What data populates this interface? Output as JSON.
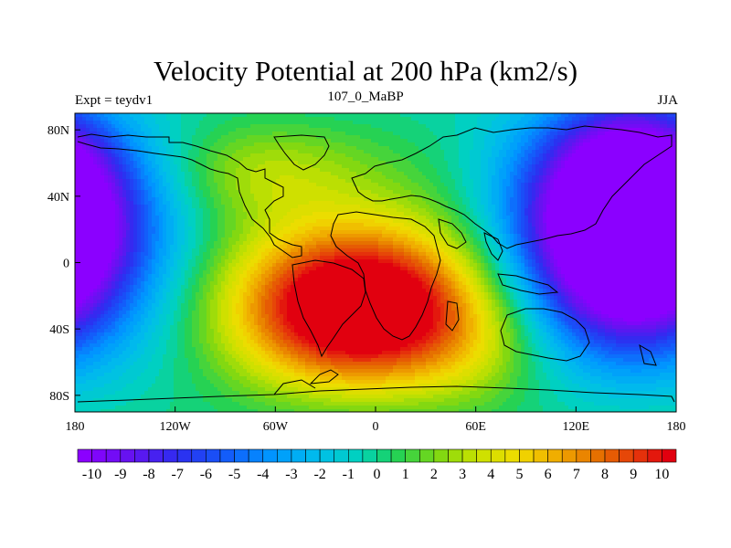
{
  "chart_data": {
    "type": "heatmap",
    "title": "Velocity Potential at 200 hPa (km2/s)",
    "left_string": "Expt = teydv1",
    "center_string": "107_0_MaBP",
    "right_string": "JJA",
    "x_ticks": [
      {
        "value": -180,
        "label": "180"
      },
      {
        "value": -120,
        "label": "120W"
      },
      {
        "value": -60,
        "label": "60W"
      },
      {
        "value": 0,
        "label": "0"
      },
      {
        "value": 60,
        "label": "60E"
      },
      {
        "value": 120,
        "label": "120E"
      },
      {
        "value": 180,
        "label": "180"
      }
    ],
    "y_ticks": [
      {
        "value": 80,
        "label": "80N"
      },
      {
        "value": 40,
        "label": "40N"
      },
      {
        "value": 0,
        "label": "0"
      },
      {
        "value": -40,
        "label": "40S"
      },
      {
        "value": -80,
        "label": "80S"
      }
    ],
    "xlim": [
      -180,
      180
    ],
    "ylim": [
      -90,
      90
    ],
    "colorbar_min": -10,
    "colorbar_max": 10,
    "colorbar_step": 0.5,
    "colorbar_labels": [
      "-10",
      "-9",
      "-8",
      "-7",
      "-6",
      "-5",
      "-4",
      "-3",
      "-2",
      "-1",
      "0",
      "1",
      "2",
      "3",
      "4",
      "5",
      "6",
      "7",
      "8",
      "9",
      "10"
    ],
    "centers": [
      {
        "lon": -10,
        "lat": -28,
        "value": 10.5,
        "note": "divergence maximum over South America / Africa"
      },
      {
        "lon": 150,
        "lat": 30,
        "value": -10.5,
        "note": "convergence minimum over Asia / Pacific"
      },
      {
        "lon": -172,
        "lat": 30,
        "value": -10.0,
        "note": "minimum near dateline"
      }
    ]
  }
}
